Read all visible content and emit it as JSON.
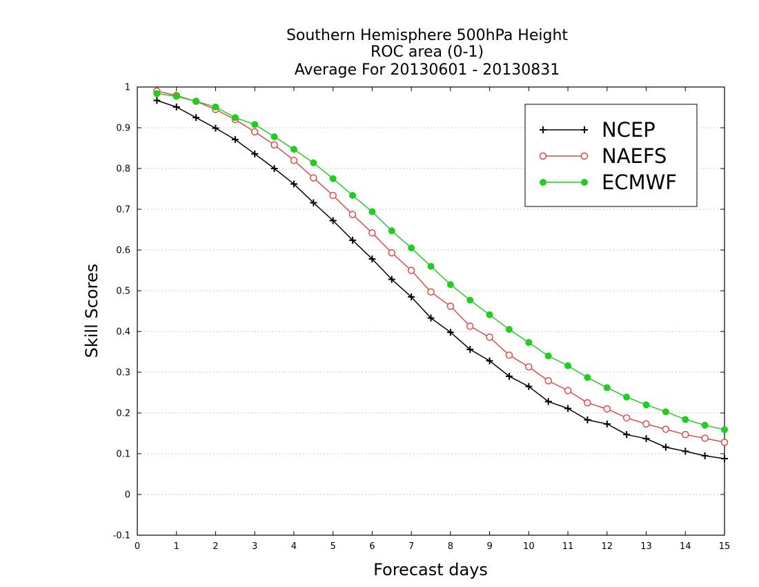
{
  "chart_data": {
    "type": "line",
    "title_lines": [
      "Southern Hemisphere 500hPa Height",
      "ROC area (0-1)",
      "Average For 20130601 - 20130831"
    ],
    "xlabel": "Forecast days",
    "ylabel": "Skill Scores",
    "xlim": [
      0,
      15
    ],
    "ylim": [
      -0.1,
      1
    ],
    "x_ticks": [
      0,
      1,
      2,
      3,
      4,
      5,
      6,
      7,
      8,
      9,
      10,
      11,
      12,
      13,
      14,
      15
    ],
    "y_ticks": [
      -0.1,
      0,
      0.1,
      0.2,
      0.3,
      0.4,
      0.5,
      0.6,
      0.7,
      0.8,
      0.9,
      1
    ],
    "y_tick_labels": [
      "-0.1",
      "0",
      "0.1",
      "0.2",
      "0.3",
      "0.4",
      "0.5",
      "0.6",
      "0.7",
      "0.8",
      "0.9",
      "1"
    ],
    "grid": "horizontal-dotted",
    "legend_position": "top-right",
    "x": [
      0.5,
      1,
      1.5,
      2,
      2.5,
      3,
      3.5,
      4,
      4.5,
      5,
      5.5,
      6,
      6.5,
      7,
      7.5,
      8,
      8.5,
      9,
      9.5,
      10,
      10.5,
      11,
      11.5,
      12,
      12.5,
      13,
      13.5,
      14,
      14.5,
      15
    ],
    "series": [
      {
        "name": "NCEP",
        "color": "#000000",
        "marker": "plus",
        "values": [
          0.967,
          0.951,
          0.925,
          0.899,
          0.871,
          0.836,
          0.8,
          0.762,
          0.716,
          0.672,
          0.624,
          0.578,
          0.528,
          0.485,
          0.433,
          0.398,
          0.356,
          0.328,
          0.29,
          0.265,
          0.228,
          0.211,
          0.183,
          0.173,
          0.147,
          0.137,
          0.116,
          0.106,
          0.095,
          0.088
        ]
      },
      {
        "name": "NAEFS",
        "color": "#e04848",
        "marker": "open-circle",
        "values": [
          0.99,
          0.979,
          0.965,
          0.945,
          0.92,
          0.89,
          0.858,
          0.82,
          0.777,
          0.734,
          0.687,
          0.642,
          0.593,
          0.55,
          0.497,
          0.462,
          0.413,
          0.386,
          0.342,
          0.313,
          0.279,
          0.255,
          0.225,
          0.21,
          0.188,
          0.173,
          0.16,
          0.147,
          0.138,
          0.128
        ]
      },
      {
        "name": "ECMWF",
        "color": "#22cc22",
        "marker": "filled-circle",
        "values": [
          0.984,
          0.977,
          0.965,
          0.951,
          0.925,
          0.908,
          0.878,
          0.847,
          0.814,
          0.775,
          0.734,
          0.694,
          0.647,
          0.605,
          0.56,
          0.515,
          0.477,
          0.441,
          0.405,
          0.373,
          0.34,
          0.316,
          0.287,
          0.262,
          0.239,
          0.22,
          0.203,
          0.184,
          0.17,
          0.159
        ]
      }
    ]
  }
}
